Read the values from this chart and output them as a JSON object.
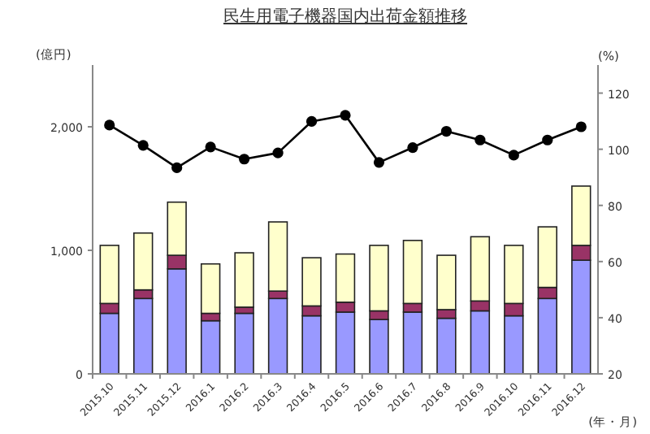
{
  "chart_data": {
    "type": "bar",
    "title": "民生用電子機器国内出荷金額推移",
    "xlabel": "(年・月)",
    "ylabel": "(億円)",
    "y2label": "(%)",
    "categories": [
      "2015.10",
      "2015.11",
      "2015.12",
      "2016.1",
      "2016.2",
      "2016.3",
      "2016.4",
      "2016.5",
      "2016.6",
      "2016.7",
      "2016.8",
      "2016.9",
      "2016.10",
      "2016.11",
      "2016.12"
    ],
    "stacked": true,
    "series": [
      {
        "color": "#9999ff",
        "values": [
          490,
          610,
          850,
          430,
          490,
          610,
          470,
          500,
          440,
          500,
          450,
          510,
          470,
          610,
          920
        ]
      },
      {
        "color": "#993366",
        "values": [
          80,
          70,
          110,
          60,
          50,
          60,
          80,
          80,
          70,
          70,
          70,
          80,
          100,
          90,
          120
        ]
      },
      {
        "color": "#ffffcc",
        "values": [
          470,
          460,
          430,
          400,
          440,
          560,
          390,
          390,
          530,
          510,
          440,
          520,
          470,
          490,
          480
        ]
      },
      {
        "type": "line",
        "axis": "y2",
        "color": "#000000",
        "marker": "circle",
        "line_style": "solid",
        "values": [
          108.6,
          101.4,
          93.4,
          100.8,
          96.5,
          98.7,
          109.9,
          112.1,
          95.3,
          100.6,
          106.4,
          103.3,
          97.9,
          103.3,
          108
        ]
      }
    ],
    "ylim": [
      0,
      2500
    ],
    "yticks": [
      0,
      {
        "value": 1000,
        "label": "1,000"
      },
      {
        "value": 2000,
        "label": "2,000"
      }
    ],
    "y2lim": [
      20,
      130
    ],
    "y2ticks": [
      20,
      40,
      60,
      80,
      100,
      120
    ],
    "grid": false
  }
}
